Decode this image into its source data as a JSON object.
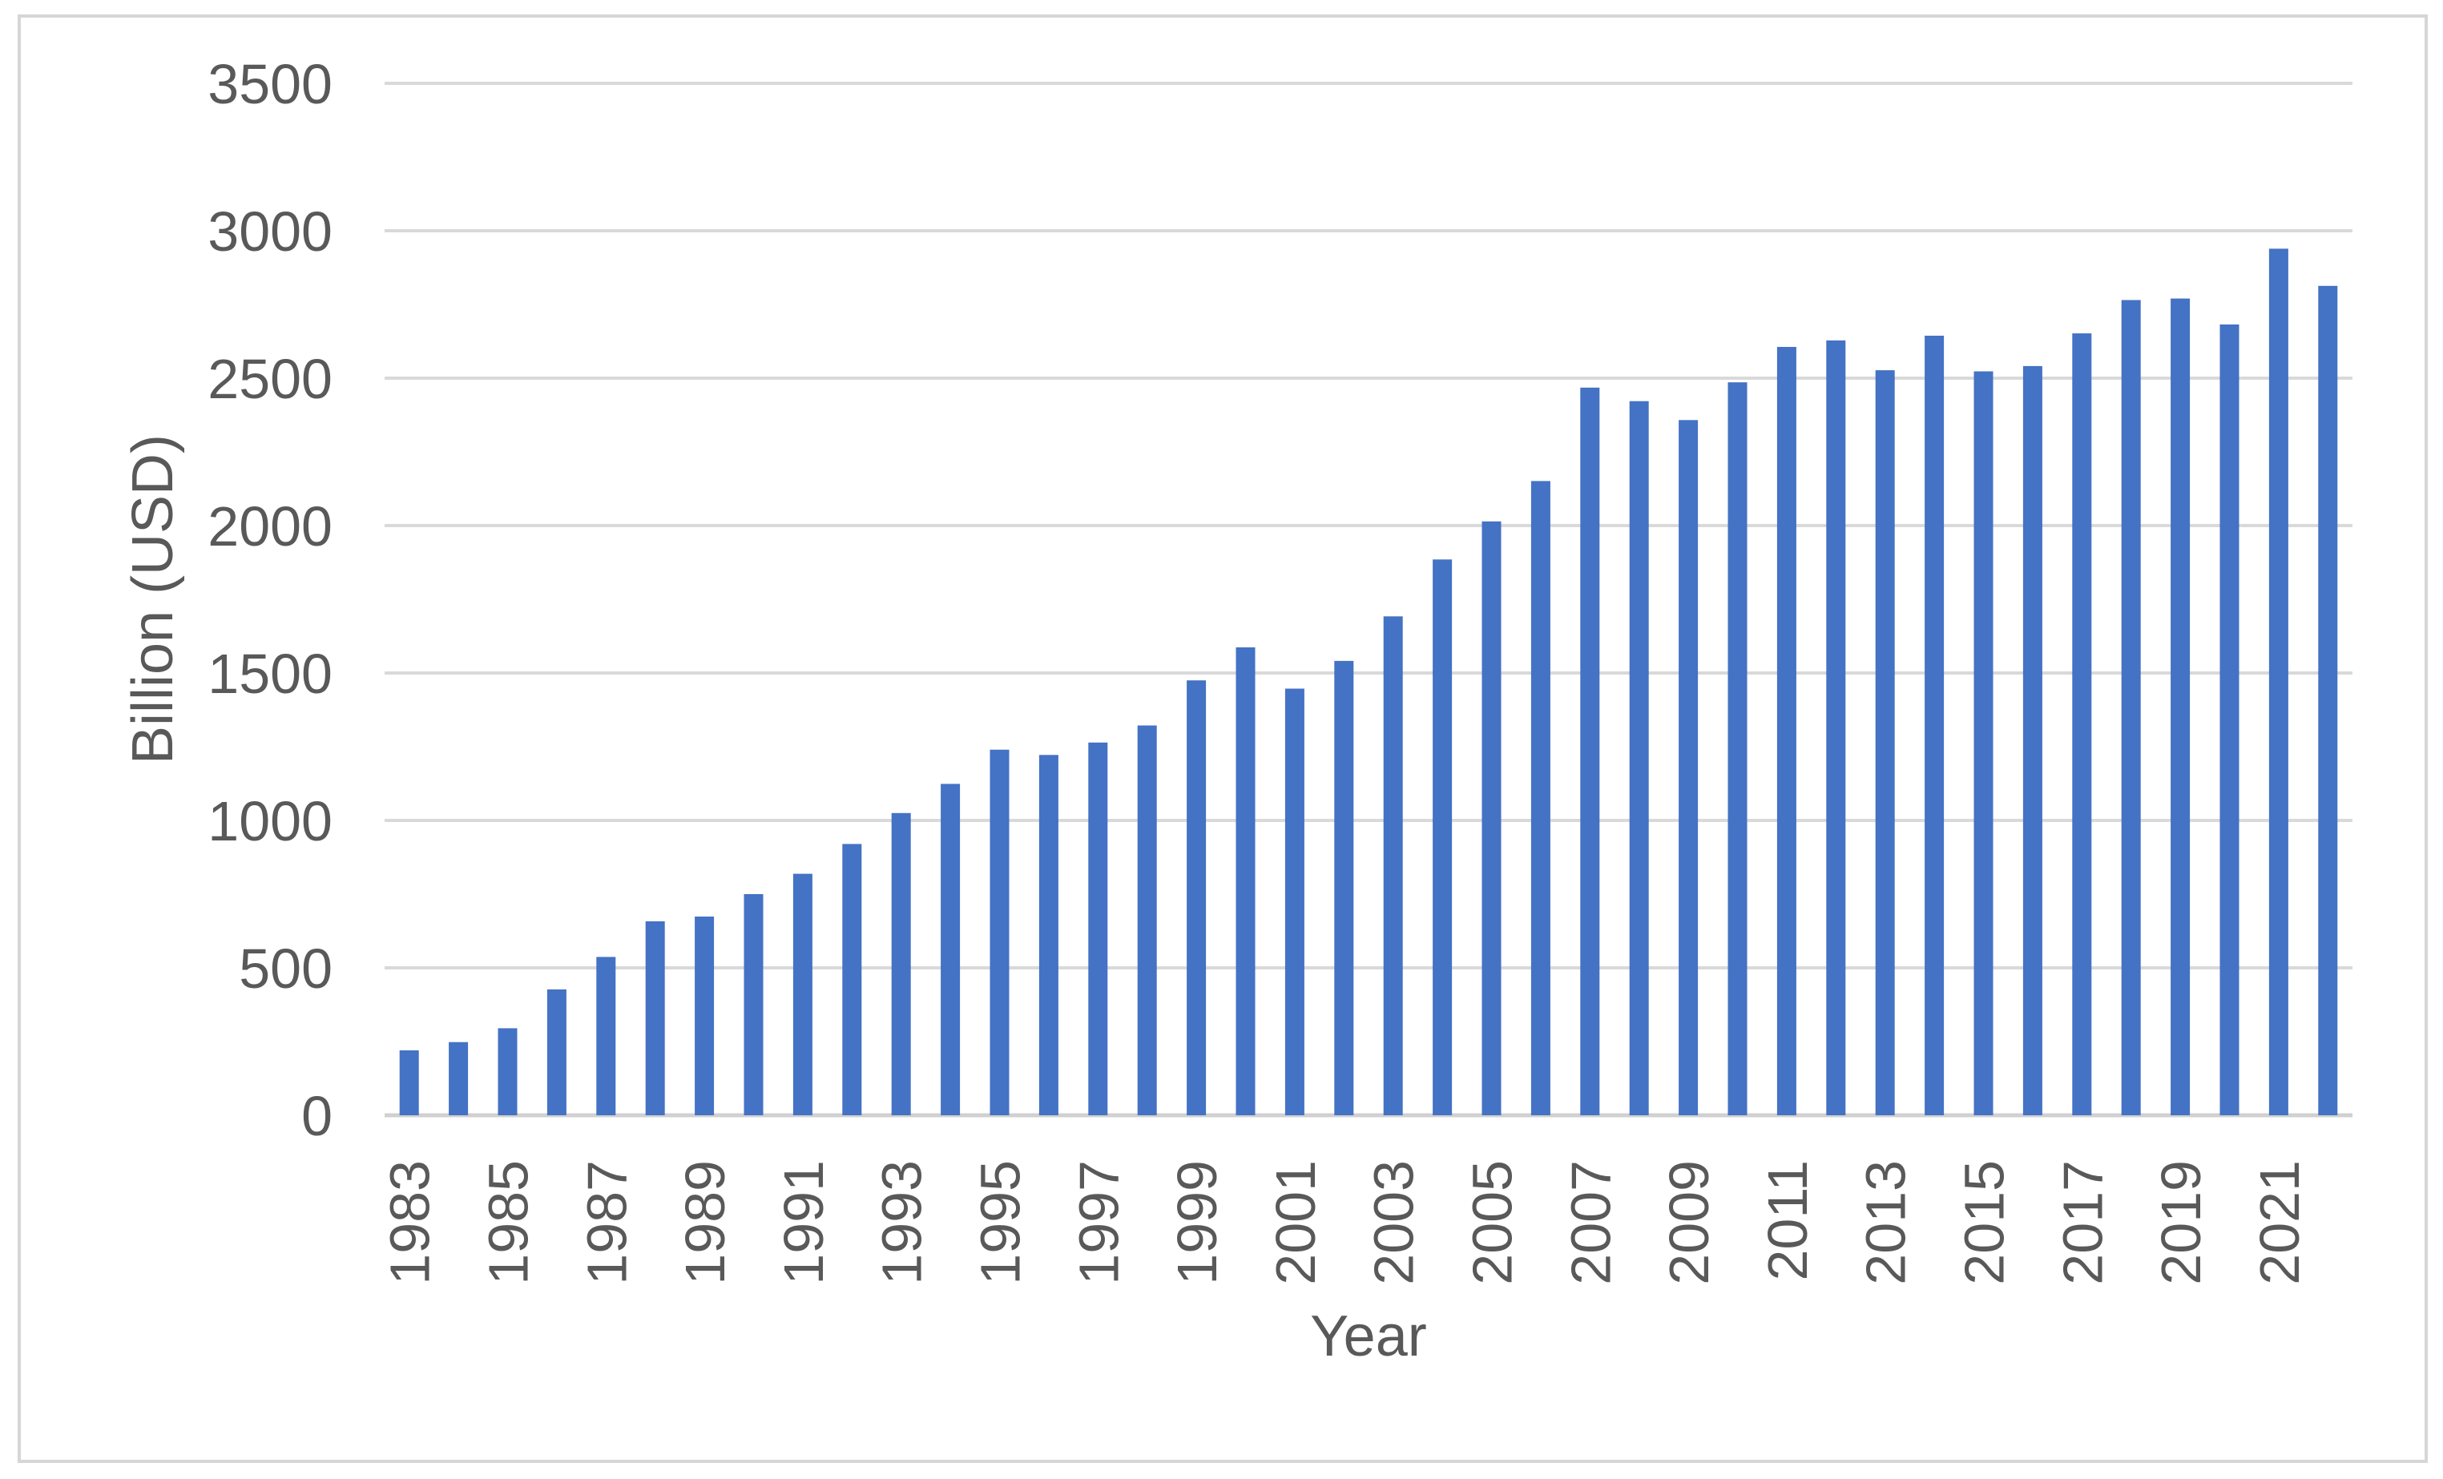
{
  "chart_data": {
    "type": "bar",
    "title": "",
    "xlabel": "Year",
    "ylabel": "Billion (USD)",
    "categories": [
      "1983",
      "1984",
      "1985",
      "1986",
      "1987",
      "1988",
      "1989",
      "1990",
      "1991",
      "1992",
      "1993",
      "1994",
      "1995",
      "1996",
      "1997",
      "1998",
      "1999",
      "2000",
      "2001",
      "2002",
      "2003",
      "2004",
      "2005",
      "2006",
      "2007",
      "2008",
      "2009",
      "2010",
      "2011",
      "2012",
      "2013",
      "2014",
      "2015",
      "2016",
      "2017",
      "2018",
      "2019",
      "2020",
      "2021",
      "2022"
    ],
    "values": [
      220,
      248,
      295,
      427,
      537,
      658,
      674,
      750,
      819,
      920,
      1025,
      1124,
      1240,
      1222,
      1264,
      1322,
      1475,
      1587,
      1447,
      1541,
      1692,
      1885,
      2014,
      2151,
      2468,
      2422,
      2358,
      2486,
      2606,
      2628,
      2527,
      2644,
      2523,
      2541,
      2652,
      2765,
      2770,
      2682,
      2939,
      2813
    ],
    "x_tick_labels": [
      "1983",
      "1985",
      "1987",
      "1989",
      "1991",
      "1993",
      "1995",
      "1997",
      "1999",
      "2001",
      "2003",
      "2005",
      "2007",
      "2009",
      "2011",
      "2013",
      "2015",
      "2017",
      "2019",
      "2021"
    ],
    "yticks": [
      0,
      500,
      1000,
      1500,
      2000,
      2500,
      3000,
      3500
    ],
    "ylim": [
      0,
      3500
    ],
    "grid": "horizontal",
    "legend_position": "none"
  },
  "colors": {
    "bar": "#4472C4",
    "gridline": "#D9D9D9",
    "axis_line": "#D0D0D0",
    "text": "#595959",
    "border": "#D6D6D6",
    "background": "#FFFFFF"
  }
}
